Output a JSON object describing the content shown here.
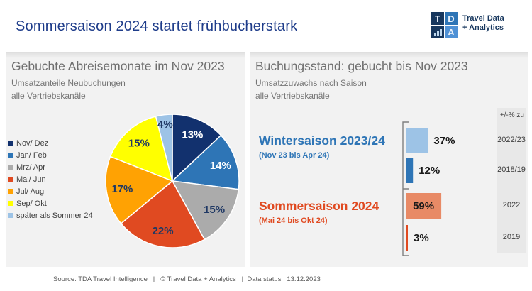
{
  "header": {
    "title": "Sommersaison 2024 startet frühbucherstark",
    "logo": {
      "letter_t": "T",
      "letter_d": "D",
      "letter_a": "A",
      "chart_icon": "bar-chart-icon",
      "text_line1": "Travel Data",
      "text_line2": "+ Analytics"
    }
  },
  "left_panel": {
    "title": "Gebuchte Abreisemonate im Nov 2023",
    "subtitle1": "Umsatzanteile Neubuchungen",
    "subtitle2": "alle Vertriebskanäle"
  },
  "right_panel": {
    "title": "Buchungsstand: gebucht bis Nov 2023",
    "subtitle1": "Umsatzzuwachs nach Saison",
    "subtitle2": "alle Vertriebskanäle",
    "column_header": "+/-% zu",
    "winter": {
      "label": "Wintersaison 2023/24",
      "sublabel": "(Nov 23 bis Apr 24)"
    },
    "summer": {
      "label": "Sommersaison 2024",
      "sublabel": "(Mai 24 bis Okt 24)"
    }
  },
  "footer": {
    "text": "Source: TDA Travel Intelligence   |   © Travel Data + Analytics   |  Data status : 13.12.2023"
  },
  "colors": {
    "accent_navy": "#12316e",
    "accent_blue": "#2e75b6",
    "accent_orange_red": "#e04a21",
    "panel_bg": "#f2f2f2",
    "column_bg": "#e8e8e8"
  },
  "chart_data": [
    {
      "type": "pie",
      "title": "Gebuchte Abreisemonate im Nov 2023",
      "subtitle": "Umsatzanteile Neubuchungen, alle Vertriebskanäle",
      "labels": [
        "Nov/ Dez",
        "Jan/ Feb",
        "Mrz/ Apr",
        "Mai/ Jun",
        "Jul/ Aug",
        "Sep/ Okt",
        "später als Sommer 24"
      ],
      "values": [
        13,
        14,
        15,
        22,
        17,
        15,
        4
      ],
      "unit": "%",
      "colors": [
        "#12316e",
        "#2e75b6",
        "#ababab",
        "#e04a21",
        "#ffa203",
        "#ffff00",
        "#9dc3e6"
      ],
      "label_colors": [
        "#ffffff",
        "#ffffff",
        "#1f3864",
        "#1f3864",
        "#1f3864",
        "#1f3864",
        "#1f3864"
      ],
      "start_angle_deg": 0,
      "direction": "clockwise",
      "legend_position": "left"
    },
    {
      "type": "bar",
      "orientation": "horizontal",
      "title": "Buchungsstand: gebucht bis Nov 2023",
      "subtitle": "Umsatzzuwachs nach Saison, alle Vertriebskanäle",
      "comparison_header": "+/-% zu",
      "unit": "%",
      "xlim": [
        0,
        65
      ],
      "groups": [
        {
          "season": "Wintersaison 2023/24",
          "season_range": "(Nov 23 bis Apr 24)",
          "bars": [
            {
              "value": 37,
              "vs": "2022/23",
              "color": "#9dc3e6"
            },
            {
              "value": 12,
              "vs": "2018/19",
              "color": "#2e75b6"
            }
          ]
        },
        {
          "season": "Sommersaison 2024",
          "season_range": "(Mai 24 bis Okt 24)",
          "bars": [
            {
              "value": 59,
              "vs": "2022",
              "color": "#e88a66"
            },
            {
              "value": 3,
              "vs": "2019",
              "color": "#e04a21"
            }
          ]
        }
      ]
    }
  ]
}
